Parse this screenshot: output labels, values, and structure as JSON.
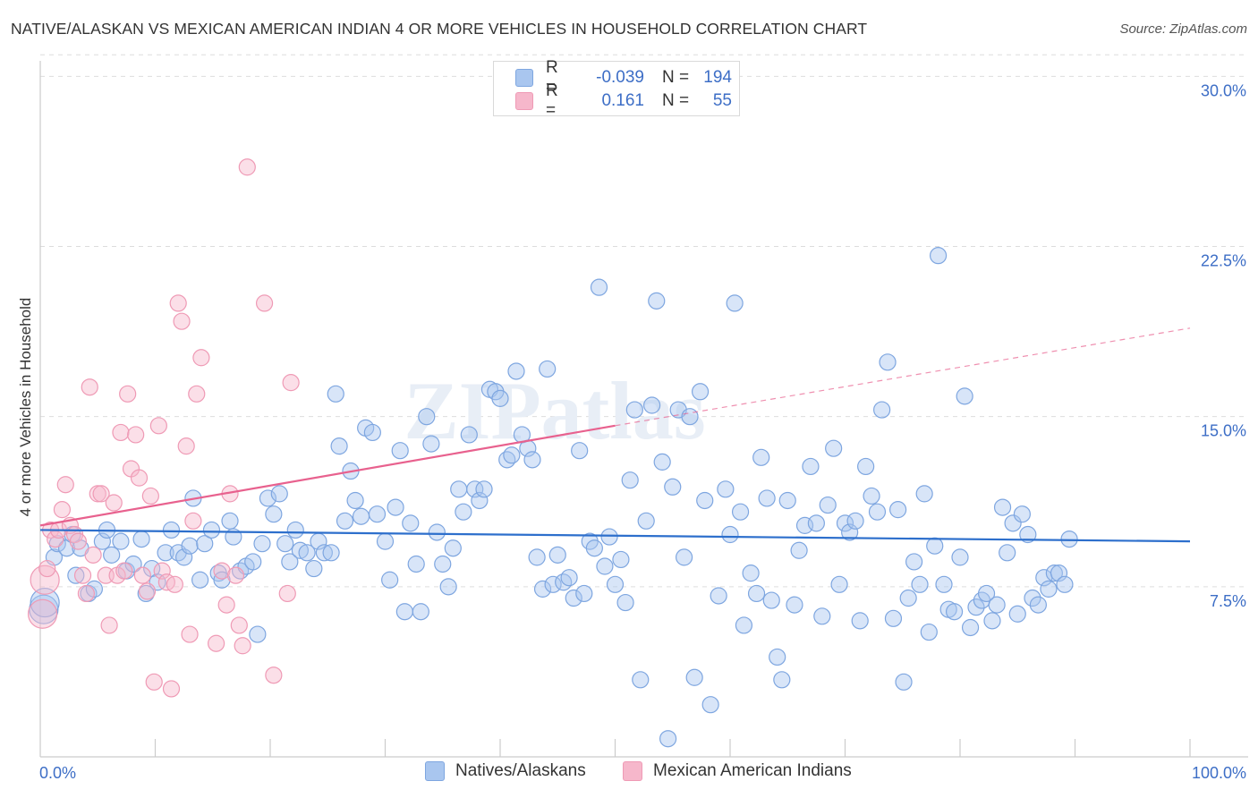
{
  "title": "NATIVE/ALASKAN VS MEXICAN AMERICAN INDIAN 4 OR MORE VEHICLES IN HOUSEHOLD CORRELATION CHART",
  "source": "Source: ZipAtlas.com",
  "watermark": "ZIPatlas",
  "legend_top": [
    {
      "r_label": "R =",
      "r_value": "-0.039",
      "n_label": "N =",
      "n_value": "194"
    },
    {
      "r_label": "R =",
      "r_value": "0.161",
      "n_label": "N =",
      "n_value": "55"
    }
  ],
  "legend_bottom": [
    "Natives/Alaskans",
    "Mexican American Indians"
  ],
  "colors": {
    "blue_fill": "#a9c6ef",
    "blue_stroke": "#7ea6e0",
    "blue_line": "#2d6fcc",
    "pink_fill": "#f6b7cb",
    "pink_stroke": "#ef9ab5",
    "pink_line": "#e8618e",
    "axis_text": "#3d6ec6",
    "grid": "#dddddd"
  },
  "chart_data": {
    "type": "scatter",
    "title": "NATIVE/ALASKAN VS MEXICAN AMERICAN INDIAN 4 OR MORE VEHICLES IN HOUSEHOLD CORRELATION CHART",
    "xlabel": "",
    "ylabel": "4 or more Vehicles in Household",
    "xlim": [
      0,
      100
    ],
    "ylim": [
      0,
      31
    ],
    "x_tick_labels": [
      "0.0%",
      "100.0%"
    ],
    "y_ticks": [
      7.5,
      15.0,
      22.5,
      30.0
    ],
    "y_tick_labels": [
      "7.5%",
      "15.0%",
      "22.5%",
      "30.0%"
    ],
    "grid": true,
    "series": [
      {
        "name": "Natives/Alaskans",
        "r": -0.039,
        "n": 194,
        "trend": {
          "x": [
            0,
            100
          ],
          "y": [
            10.0,
            9.5
          ]
        },
        "points": [
          [
            0.3,
            6.5
          ],
          [
            0.4,
            6.8
          ],
          [
            1.2,
            8.8
          ],
          [
            1.5,
            9.4
          ],
          [
            2.3,
            9.2
          ],
          [
            2.8,
            9.8
          ],
          [
            3.1,
            8.0
          ],
          [
            3.5,
            9.2
          ],
          [
            4.2,
            7.2
          ],
          [
            4.7,
            7.4
          ],
          [
            5.4,
            9.5
          ],
          [
            5.8,
            10.0
          ],
          [
            6.2,
            8.9
          ],
          [
            7.0,
            9.5
          ],
          [
            7.5,
            8.2
          ],
          [
            8.1,
            8.5
          ],
          [
            8.8,
            9.6
          ],
          [
            9.2,
            7.2
          ],
          [
            9.7,
            8.3
          ],
          [
            10.2,
            7.7
          ],
          [
            10.9,
            9.0
          ],
          [
            11.4,
            10.0
          ],
          [
            12.0,
            9.0
          ],
          [
            12.5,
            8.8
          ],
          [
            13.0,
            9.3
          ],
          [
            13.3,
            11.4
          ],
          [
            13.9,
            7.8
          ],
          [
            14.3,
            9.4
          ],
          [
            14.9,
            10.0
          ],
          [
            15.5,
            8.1
          ],
          [
            15.8,
            7.8
          ],
          [
            16.5,
            10.4
          ],
          [
            16.8,
            9.7
          ],
          [
            17.4,
            8.2
          ],
          [
            17.9,
            8.4
          ],
          [
            18.5,
            8.6
          ],
          [
            18.9,
            5.4
          ],
          [
            19.3,
            9.4
          ],
          [
            19.8,
            11.4
          ],
          [
            20.3,
            10.7
          ],
          [
            20.8,
            11.6
          ],
          [
            21.3,
            9.4
          ],
          [
            21.7,
            8.6
          ],
          [
            22.2,
            10.0
          ],
          [
            22.6,
            9.1
          ],
          [
            23.2,
            9.0
          ],
          [
            23.8,
            8.3
          ],
          [
            24.2,
            9.5
          ],
          [
            24.7,
            9.0
          ],
          [
            25.3,
            9.0
          ],
          [
            25.7,
            16.0
          ],
          [
            26.0,
            13.7
          ],
          [
            26.5,
            10.4
          ],
          [
            27.0,
            12.6
          ],
          [
            27.4,
            11.3
          ],
          [
            27.9,
            10.6
          ],
          [
            28.3,
            14.5
          ],
          [
            28.9,
            14.3
          ],
          [
            29.3,
            10.7
          ],
          [
            30.0,
            9.5
          ],
          [
            30.4,
            7.8
          ],
          [
            30.9,
            11.0
          ],
          [
            31.3,
            13.5
          ],
          [
            31.7,
            6.4
          ],
          [
            32.2,
            10.3
          ],
          [
            32.7,
            8.5
          ],
          [
            33.1,
            6.4
          ],
          [
            33.6,
            15.0
          ],
          [
            34.0,
            13.8
          ],
          [
            34.5,
            9.9
          ],
          [
            35.0,
            8.5
          ],
          [
            35.5,
            7.5
          ],
          [
            35.9,
            9.2
          ],
          [
            36.4,
            11.8
          ],
          [
            36.8,
            10.8
          ],
          [
            37.3,
            14.2
          ],
          [
            37.8,
            11.8
          ],
          [
            38.2,
            11.3
          ],
          [
            38.6,
            11.8
          ],
          [
            39.1,
            16.2
          ],
          [
            39.6,
            16.1
          ],
          [
            40.0,
            15.8
          ],
          [
            40.6,
            13.1
          ],
          [
            41.0,
            13.3
          ],
          [
            41.4,
            17.0
          ],
          [
            41.9,
            14.2
          ],
          [
            42.4,
            13.6
          ],
          [
            42.8,
            13.1
          ],
          [
            43.2,
            8.8
          ],
          [
            43.7,
            7.4
          ],
          [
            44.1,
            17.1
          ],
          [
            44.6,
            7.6
          ],
          [
            45.0,
            8.9
          ],
          [
            45.5,
            7.7
          ],
          [
            46.0,
            7.9
          ],
          [
            46.4,
            7.0
          ],
          [
            46.9,
            13.5
          ],
          [
            47.3,
            7.2
          ],
          [
            47.8,
            9.5
          ],
          [
            48.2,
            9.2
          ],
          [
            48.6,
            20.7
          ],
          [
            49.1,
            8.4
          ],
          [
            49.5,
            9.7
          ],
          [
            50.0,
            7.6
          ],
          [
            50.5,
            8.7
          ],
          [
            50.9,
            6.8
          ],
          [
            51.3,
            12.2
          ],
          [
            51.7,
            15.3
          ],
          [
            52.2,
            3.4
          ],
          [
            52.7,
            10.4
          ],
          [
            53.2,
            15.5
          ],
          [
            53.6,
            20.1
          ],
          [
            54.1,
            13.0
          ],
          [
            54.6,
            0.8
          ],
          [
            55.0,
            11.9
          ],
          [
            55.5,
            15.3
          ],
          [
            56.0,
            8.8
          ],
          [
            56.5,
            15.0
          ],
          [
            56.9,
            3.5
          ],
          [
            57.4,
            16.1
          ],
          [
            57.8,
            11.3
          ],
          [
            58.3,
            2.3
          ],
          [
            59.0,
            7.1
          ],
          [
            59.6,
            11.8
          ],
          [
            60.0,
            9.8
          ],
          [
            60.4,
            20.0
          ],
          [
            60.9,
            10.8
          ],
          [
            61.2,
            5.8
          ],
          [
            61.8,
            8.1
          ],
          [
            62.3,
            7.2
          ],
          [
            62.7,
            13.2
          ],
          [
            63.2,
            11.4
          ],
          [
            63.6,
            6.9
          ],
          [
            64.1,
            4.4
          ],
          [
            64.5,
            3.4
          ],
          [
            65.0,
            11.3
          ],
          [
            65.6,
            6.7
          ],
          [
            66.0,
            9.1
          ],
          [
            66.5,
            10.2
          ],
          [
            67.0,
            12.8
          ],
          [
            67.5,
            10.3
          ],
          [
            68.0,
            6.2
          ],
          [
            68.5,
            11.1
          ],
          [
            69.0,
            13.6
          ],
          [
            69.5,
            7.6
          ],
          [
            70.0,
            10.3
          ],
          [
            70.4,
            9.9
          ],
          [
            70.9,
            10.4
          ],
          [
            71.3,
            6.0
          ],
          [
            71.8,
            12.8
          ],
          [
            72.3,
            11.5
          ],
          [
            72.8,
            10.8
          ],
          [
            73.2,
            15.3
          ],
          [
            73.7,
            17.4
          ],
          [
            74.2,
            6.1
          ],
          [
            74.6,
            10.9
          ],
          [
            75.1,
            3.3
          ],
          [
            75.5,
            7.0
          ],
          [
            76.0,
            8.6
          ],
          [
            76.5,
            7.6
          ],
          [
            76.9,
            11.6
          ],
          [
            77.3,
            5.5
          ],
          [
            77.8,
            9.3
          ],
          [
            78.1,
            22.1
          ],
          [
            78.6,
            7.6
          ],
          [
            79.0,
            6.5
          ],
          [
            79.5,
            6.4
          ],
          [
            80.0,
            8.8
          ],
          [
            80.4,
            15.9
          ],
          [
            80.9,
            5.7
          ],
          [
            81.4,
            6.6
          ],
          [
            81.9,
            6.9
          ],
          [
            82.3,
            7.2
          ],
          [
            82.8,
            6.0
          ],
          [
            83.2,
            6.7
          ],
          [
            83.7,
            11.0
          ],
          [
            84.1,
            9.0
          ],
          [
            84.6,
            10.3
          ],
          [
            85.0,
            6.3
          ],
          [
            85.4,
            10.7
          ],
          [
            85.9,
            9.8
          ],
          [
            86.3,
            7.0
          ],
          [
            86.8,
            6.7
          ],
          [
            87.3,
            7.9
          ],
          [
            87.7,
            7.4
          ],
          [
            88.2,
            8.1
          ],
          [
            88.6,
            8.1
          ],
          [
            89.1,
            7.6
          ],
          [
            89.5,
            9.6
          ]
        ]
      },
      {
        "name": "Mexican American Indians",
        "r": 0.161,
        "n": 55,
        "trend": {
          "x": [
            0,
            50
          ],
          "y": [
            10.2,
            14.6
          ]
        },
        "trend_dashed": {
          "x": [
            50,
            100
          ],
          "y": [
            14.6,
            18.9
          ]
        },
        "points": [
          [
            0.2,
            6.3
          ],
          [
            0.4,
            7.8
          ],
          [
            0.6,
            8.3
          ],
          [
            0.9,
            10.0
          ],
          [
            1.3,
            9.6
          ],
          [
            1.6,
            10.0
          ],
          [
            1.9,
            10.9
          ],
          [
            2.2,
            12.0
          ],
          [
            2.6,
            10.2
          ],
          [
            3.0,
            9.8
          ],
          [
            3.3,
            9.5
          ],
          [
            3.7,
            8.0
          ],
          [
            4.0,
            7.2
          ],
          [
            4.3,
            16.3
          ],
          [
            4.6,
            8.9
          ],
          [
            5.0,
            11.6
          ],
          [
            5.3,
            11.6
          ],
          [
            5.7,
            8.0
          ],
          [
            6.0,
            5.8
          ],
          [
            6.4,
            11.2
          ],
          [
            6.7,
            8.0
          ],
          [
            7.0,
            14.3
          ],
          [
            7.3,
            8.2
          ],
          [
            7.6,
            16.0
          ],
          [
            7.9,
            12.7
          ],
          [
            8.3,
            14.2
          ],
          [
            8.6,
            12.3
          ],
          [
            8.9,
            8.0
          ],
          [
            9.3,
            7.3
          ],
          [
            9.6,
            11.5
          ],
          [
            9.9,
            3.3
          ],
          [
            10.3,
            14.6
          ],
          [
            10.6,
            8.2
          ],
          [
            11.0,
            7.7
          ],
          [
            11.4,
            3.0
          ],
          [
            11.7,
            7.6
          ],
          [
            12.0,
            20.0
          ],
          [
            12.3,
            19.2
          ],
          [
            12.7,
            13.7
          ],
          [
            13.0,
            5.4
          ],
          [
            13.3,
            10.4
          ],
          [
            13.6,
            16.0
          ],
          [
            14.0,
            17.6
          ],
          [
            15.3,
            5.0
          ],
          [
            15.8,
            8.2
          ],
          [
            16.2,
            6.7
          ],
          [
            16.5,
            11.6
          ],
          [
            17.0,
            8.0
          ],
          [
            17.3,
            5.8
          ],
          [
            17.6,
            4.9
          ],
          [
            18.0,
            26.0
          ],
          [
            19.5,
            20.0
          ],
          [
            20.3,
            3.6
          ],
          [
            21.8,
            16.5
          ],
          [
            21.5,
            7.2
          ]
        ]
      }
    ]
  }
}
